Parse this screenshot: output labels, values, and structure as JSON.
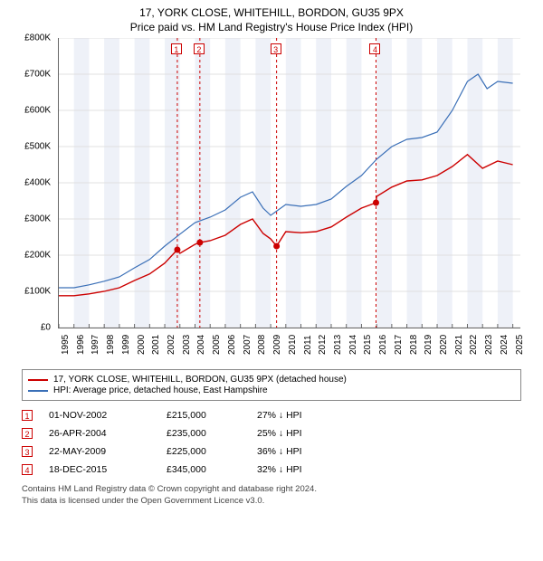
{
  "title_line1": "17, YORK CLOSE, WHITEHILL, BORDON, GU35 9PX",
  "title_line2": "Price paid vs. HM Land Registry's House Price Index (HPI)",
  "chart": {
    "type": "line",
    "background_color": "#ffffff",
    "band_color": "#eef1f8",
    "x_years": [
      1995,
      1996,
      1997,
      1998,
      1999,
      2000,
      2001,
      2002,
      2003,
      2004,
      2005,
      2006,
      2007,
      2008,
      2009,
      2010,
      2011,
      2012,
      2013,
      2014,
      2015,
      2016,
      2017,
      2018,
      2019,
      2020,
      2021,
      2022,
      2023,
      2024,
      2025
    ],
    "y_ticks": [
      0,
      100000,
      200000,
      300000,
      400000,
      500000,
      600000,
      700000,
      800000
    ],
    "y_tick_labels": [
      "£0",
      "£100K",
      "£200K",
      "£300K",
      "£400K",
      "£500K",
      "£600K",
      "£700K",
      "£800K"
    ],
    "ylim": [
      0,
      800000
    ],
    "xlim": [
      1995,
      2025.5
    ],
    "grid_color": "#e0e0e0",
    "axis_color": "#666666",
    "label_fontsize": 10,
    "series": [
      {
        "name": "hpi",
        "color": "#3a6fb7",
        "width": 1.2,
        "points": [
          [
            1995,
            110000
          ],
          [
            1996,
            110000
          ],
          [
            1997,
            118000
          ],
          [
            1998,
            128000
          ],
          [
            1999,
            140000
          ],
          [
            2000,
            165000
          ],
          [
            2001,
            188000
          ],
          [
            2002,
            225000
          ],
          [
            2003,
            258000
          ],
          [
            2004,
            290000
          ],
          [
            2005,
            305000
          ],
          [
            2006,
            325000
          ],
          [
            2007,
            360000
          ],
          [
            2007.8,
            375000
          ],
          [
            2008.5,
            330000
          ],
          [
            2009,
            310000
          ],
          [
            2010,
            340000
          ],
          [
            2011,
            335000
          ],
          [
            2012,
            340000
          ],
          [
            2013,
            355000
          ],
          [
            2014,
            390000
          ],
          [
            2015,
            420000
          ],
          [
            2016,
            465000
          ],
          [
            2017,
            500000
          ],
          [
            2018,
            520000
          ],
          [
            2019,
            525000
          ],
          [
            2020,
            540000
          ],
          [
            2021,
            600000
          ],
          [
            2022,
            680000
          ],
          [
            2022.7,
            700000
          ],
          [
            2023.3,
            660000
          ],
          [
            2024,
            680000
          ],
          [
            2025,
            675000
          ]
        ]
      },
      {
        "name": "property",
        "color": "#cc0000",
        "width": 1.4,
        "points": [
          [
            1995,
            88000
          ],
          [
            1996,
            88000
          ],
          [
            1997,
            93000
          ],
          [
            1998,
            100000
          ],
          [
            1999,
            110000
          ],
          [
            2000,
            130000
          ],
          [
            2001,
            148000
          ],
          [
            2002,
            178000
          ],
          [
            2002.83,
            215000
          ],
          [
            2003,
            205000
          ],
          [
            2004,
            230000
          ],
          [
            2004.32,
            235000
          ],
          [
            2005,
            240000
          ],
          [
            2006,
            255000
          ],
          [
            2007,
            285000
          ],
          [
            2007.8,
            300000
          ],
          [
            2008.5,
            260000
          ],
          [
            2009,
            245000
          ],
          [
            2009.39,
            225000
          ],
          [
            2010,
            265000
          ],
          [
            2011,
            262000
          ],
          [
            2012,
            265000
          ],
          [
            2013,
            278000
          ],
          [
            2014,
            305000
          ],
          [
            2015,
            330000
          ],
          [
            2015.96,
            345000
          ],
          [
            2016,
            362000
          ],
          [
            2017,
            388000
          ],
          [
            2018,
            405000
          ],
          [
            2019,
            408000
          ],
          [
            2020,
            420000
          ],
          [
            2021,
            445000
          ],
          [
            2022,
            478000
          ],
          [
            2023,
            440000
          ],
          [
            2024,
            460000
          ],
          [
            2025,
            450000
          ]
        ]
      }
    ],
    "sale_markers": [
      {
        "n": "1",
        "year": 2002.83,
        "value": 215000
      },
      {
        "n": "2",
        "year": 2004.32,
        "value": 235000
      },
      {
        "n": "3",
        "year": 2009.39,
        "value": 225000
      },
      {
        "n": "4",
        "year": 2015.96,
        "value": 345000
      }
    ],
    "marker_line_color": "#cc0000",
    "marker_dot_color": "#cc0000"
  },
  "legend": {
    "items": [
      {
        "color": "#cc0000",
        "label": "17, YORK CLOSE, WHITEHILL, BORDON, GU35 9PX (detached house)"
      },
      {
        "color": "#3a6fb7",
        "label": "HPI: Average price, detached house, East Hampshire"
      }
    ]
  },
  "sales": [
    {
      "n": "1",
      "date": "01-NOV-2002",
      "price": "£215,000",
      "delta": "27% ↓ HPI"
    },
    {
      "n": "2",
      "date": "26-APR-2004",
      "price": "£235,000",
      "delta": "25% ↓ HPI"
    },
    {
      "n": "3",
      "date": "22-MAY-2009",
      "price": "£225,000",
      "delta": "36% ↓ HPI"
    },
    {
      "n": "4",
      "date": "18-DEC-2015",
      "price": "£345,000",
      "delta": "32% ↓ HPI"
    }
  ],
  "footnote_line1": "Contains HM Land Registry data © Crown copyright and database right 2024.",
  "footnote_line2": "This data is licensed under the Open Government Licence v3.0."
}
